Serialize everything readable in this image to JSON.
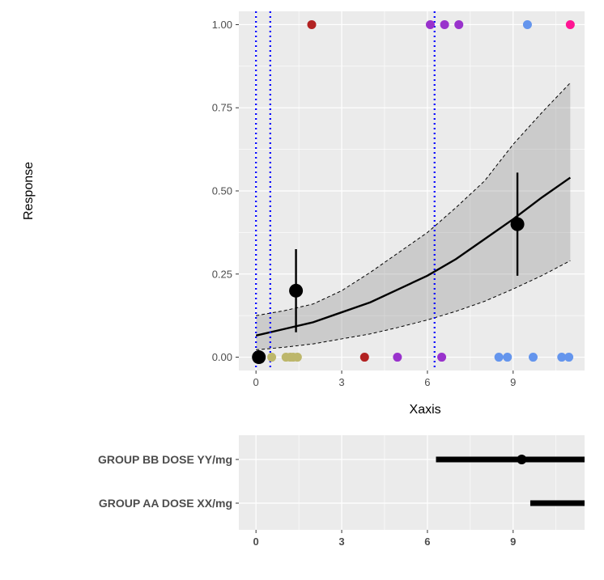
{
  "chart_data": [
    {
      "type": "scatter",
      "title": "",
      "xlabel": "Xaxis",
      "ylabel": "Response",
      "xlim": [
        -0.6,
        11.5
      ],
      "ylim": [
        -0.04,
        1.04
      ],
      "x_ticks": [
        0,
        3,
        6,
        9
      ],
      "y_ticks": [
        0.0,
        0.25,
        0.5,
        0.75,
        1.0
      ],
      "y_tick_labels": [
        "0.00",
        "0.25",
        "0.50",
        "0.75",
        "1.00"
      ],
      "grid": true,
      "panel_background": "#ebebeb",
      "vertical_reference_lines": {
        "color": "#0000ff",
        "style": "dotted",
        "x": [
          0.0,
          0.5,
          6.25
        ]
      },
      "raw_points": [
        {
          "x": 1.95,
          "y": 1,
          "color": "#b22222"
        },
        {
          "x": 6.1,
          "y": 1,
          "color": "#9932cc"
        },
        {
          "x": 6.6,
          "y": 1,
          "color": "#9932cc"
        },
        {
          "x": 7.1,
          "y": 1,
          "color": "#9932cc"
        },
        {
          "x": 9.5,
          "y": 1,
          "color": "#6495ed"
        },
        {
          "x": 11.0,
          "y": 1,
          "color": "#ff1493"
        },
        {
          "x": 0.55,
          "y": 0,
          "color": "#bdb76b"
        },
        {
          "x": 1.05,
          "y": 0,
          "color": "#bdb76b"
        },
        {
          "x": 1.2,
          "y": 0,
          "color": "#bdb76b"
        },
        {
          "x": 1.3,
          "y": 0,
          "color": "#bdb76b"
        },
        {
          "x": 1.45,
          "y": 0,
          "color": "#bdb76b"
        },
        {
          "x": 3.8,
          "y": 0,
          "color": "#b22222"
        },
        {
          "x": 4.95,
          "y": 0,
          "color": "#9932cc"
        },
        {
          "x": 6.5,
          "y": 0,
          "color": "#9932cc"
        },
        {
          "x": 8.5,
          "y": 0,
          "color": "#6495ed"
        },
        {
          "x": 8.8,
          "y": 0,
          "color": "#6495ed"
        },
        {
          "x": 9.7,
          "y": 0,
          "color": "#6495ed"
        },
        {
          "x": 10.7,
          "y": 0,
          "color": "#6495ed"
        },
        {
          "x": 10.95,
          "y": 0,
          "color": "#6495ed"
        }
      ],
      "binned_means": [
        {
          "x": 0.1,
          "y": 0.0,
          "lower": 0.0,
          "upper": 0.0
        },
        {
          "x": 1.4,
          "y": 0.2,
          "lower": 0.075,
          "upper": 0.325
        },
        {
          "x": 9.15,
          "y": 0.4,
          "lower": 0.245,
          "upper": 0.555
        }
      ],
      "fit_line": {
        "x": [
          0,
          1,
          2,
          3,
          4,
          5,
          6,
          7,
          8,
          9,
          10,
          11
        ],
        "y": [
          0.065,
          0.085,
          0.105,
          0.135,
          0.165,
          0.205,
          0.245,
          0.295,
          0.355,
          0.415,
          0.48,
          0.54
        ],
        "lower": [
          0.022,
          0.03,
          0.04,
          0.055,
          0.07,
          0.09,
          0.112,
          0.138,
          0.168,
          0.205,
          0.245,
          0.29
        ],
        "upper": [
          0.125,
          0.14,
          0.16,
          0.2,
          0.255,
          0.315,
          0.375,
          0.45,
          0.53,
          0.64,
          0.735,
          0.825
        ]
      }
    },
    {
      "type": "bar",
      "orientation": "horizontal",
      "title": "",
      "xlabel": "",
      "ylabel": "",
      "xlim": [
        -0.6,
        11.5
      ],
      "x_ticks": [
        0,
        3,
        6,
        9
      ],
      "grid": true,
      "panel_background": "#ebebeb",
      "categories": [
        "GROUP BB DOSE YY/mg",
        "GROUP AA DOSE XX/mg"
      ],
      "series": [
        {
          "label": "GROUP BB DOSE YY/mg",
          "start": 6.3,
          "end": 11.5,
          "point": 9.3
        },
        {
          "label": "GROUP AA DOSE XX/mg",
          "start": 9.6,
          "end": 11.5,
          "point": null
        }
      ]
    }
  ]
}
